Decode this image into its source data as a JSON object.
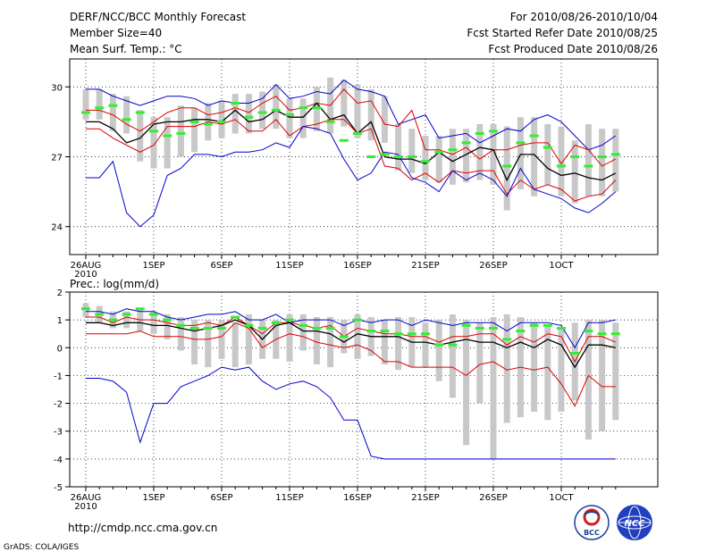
{
  "header": {
    "title": "DERF/NCC/BCC Monthly Forecast",
    "member_size": "Member Size=40",
    "variable": "Mean Surf. Temp.: °C",
    "period": "For 2010/08/26-2010/10/04",
    "fcst_started": "Fcst Started Refer Date 2010/08/25",
    "fcst_produced": "Fcst Produced Date 2010/08/26"
  },
  "precip_label": "Prec.: log(mm/d)",
  "footer": {
    "url": "http://cmdp.ncc.cma.gov.cn",
    "grads": "GrADS: COLA/IGES",
    "logo_bcc": "BCC",
    "logo_ncc": "NCC"
  },
  "colors": {
    "max_min": "#0000cc",
    "std_band": "#dd0000",
    "mean": "#000000",
    "observed": "#33ee33",
    "spread": "#c8c8c8"
  },
  "chart_data": [
    {
      "type": "line",
      "title": "Mean Surf. Temp.: °C",
      "x_tick_labels": [
        "26AUG",
        "1SEP",
        "6SEP",
        "11SEP",
        "16SEP",
        "21SEP",
        "26SEP",
        "1OCT"
      ],
      "x_year_label": "2010",
      "y_ticks": [
        "24",
        "27",
        "30"
      ],
      "ylim": [
        22.8,
        31.2
      ],
      "days": [
        0,
        1,
        2,
        3,
        4,
        5,
        6,
        7,
        8,
        9,
        10,
        11,
        12,
        13,
        14,
        15,
        16,
        17,
        18,
        19,
        20,
        21,
        22,
        23,
        24,
        25,
        26,
        27,
        28,
        29,
        30,
        31,
        32,
        33,
        34,
        35,
        36,
        37,
        38,
        39
      ],
      "series": [
        {
          "name": "max",
          "values": [
            29.9,
            29.9,
            29.6,
            29.4,
            29.2,
            29.4,
            29.6,
            29.6,
            29.5,
            29.2,
            29.4,
            29.3,
            29.3,
            29.5,
            30.1,
            29.5,
            29.6,
            29.8,
            29.7,
            30.3,
            29.9,
            29.8,
            29.6,
            28.4,
            28.6,
            28.8,
            27.8,
            27.9,
            28.0,
            27.6,
            27.9,
            28.2,
            28.1,
            28.6,
            28.8,
            28.5,
            27.9,
            27.3,
            27.5,
            27.9
          ]
        },
        {
          "name": "upper",
          "values": [
            29.0,
            29.0,
            28.8,
            28.4,
            28.1,
            28.5,
            28.9,
            29.1,
            29.1,
            28.8,
            28.9,
            29.1,
            28.9,
            29.3,
            29.6,
            29.0,
            29.1,
            29.3,
            29.2,
            29.9,
            29.3,
            29.4,
            28.4,
            28.3,
            29.0,
            27.3,
            27.3,
            27.1,
            27.4,
            26.9,
            27.3,
            27.3,
            27.5,
            27.6,
            27.6,
            26.7,
            27.5,
            27.3,
            26.6,
            26.9
          ]
        },
        {
          "name": "mean",
          "values": [
            28.5,
            28.5,
            28.2,
            27.6,
            27.8,
            28.4,
            28.5,
            28.5,
            28.6,
            28.6,
            28.5,
            29.0,
            28.5,
            28.6,
            29.0,
            28.7,
            28.7,
            29.3,
            28.6,
            28.8,
            28.0,
            28.5,
            27.0,
            26.9,
            26.9,
            26.7,
            27.2,
            26.8,
            27.1,
            27.4,
            27.3,
            26.0,
            27.1,
            27.1,
            26.5,
            26.2,
            26.3,
            26.1,
            26.0,
            26.3
          ]
        },
        {
          "name": "lower",
          "values": [
            28.2,
            28.2,
            27.8,
            27.5,
            27.2,
            27.5,
            28.3,
            28.3,
            28.3,
            28.5,
            28.4,
            28.6,
            28.1,
            28.1,
            28.6,
            27.9,
            28.3,
            28.4,
            28.6,
            28.6,
            28.0,
            28.2,
            26.6,
            26.5,
            26.0,
            26.3,
            25.9,
            26.4,
            26.3,
            26.4,
            26.4,
            25.4,
            26.0,
            25.6,
            25.8,
            25.6,
            25.1,
            25.3,
            25.4,
            26.0
          ]
        },
        {
          "name": "min",
          "values": [
            26.1,
            26.1,
            26.8,
            24.6,
            24.0,
            24.5,
            26.2,
            26.5,
            27.1,
            27.1,
            27.0,
            27.2,
            27.2,
            27.3,
            27.6,
            27.4,
            28.3,
            28.2,
            28.0,
            26.9,
            26.0,
            26.3,
            27.2,
            27.1,
            26.1,
            25.9,
            25.5,
            26.4,
            26.0,
            26.3,
            26.0,
            25.3,
            26.5,
            25.6,
            25.4,
            25.2,
            24.8,
            24.6,
            25.0,
            25.5
          ]
        },
        {
          "name": "observed",
          "values": [
            28.9,
            29.1,
            29.2,
            28.6,
            28.9,
            28.1,
            27.9,
            28.0,
            28.5,
            28.4,
            28.5,
            29.3,
            28.7,
            28.9,
            29.0,
            28.8,
            29.1,
            29.1,
            28.5,
            27.7,
            28.0,
            27.0,
            27.1,
            27.0,
            27.0,
            26.8,
            27.2,
            27.3,
            27.6,
            28.0,
            28.1,
            26.6,
            27.6,
            27.9,
            27.4,
            26.6,
            27.0,
            26.6,
            27.0,
            27.1
          ]
        }
      ],
      "spread_bars": [
        [
          28.6,
          29.9
        ],
        [
          28.6,
          29.9
        ],
        [
          28.1,
          29.7
        ],
        [
          28.0,
          29.6
        ],
        [
          26.8,
          29.0
        ],
        [
          26.5,
          28.7
        ],
        [
          26.5,
          28.7
        ],
        [
          27.0,
          29.2
        ],
        [
          27.2,
          29.1
        ],
        [
          27.7,
          29.3
        ],
        [
          27.8,
          29.4
        ],
        [
          28.0,
          29.7
        ],
        [
          28.0,
          29.7
        ],
        [
          28.2,
          29.8
        ],
        [
          28.2,
          30.1
        ],
        [
          27.8,
          29.5
        ],
        [
          27.8,
          29.5
        ],
        [
          28.1,
          30.0
        ],
        [
          28.0,
          30.4
        ],
        [
          28.3,
          30.3
        ],
        [
          27.8,
          30.1
        ],
        [
          27.7,
          29.9
        ],
        [
          27.6,
          29.6
        ],
        [
          26.4,
          28.4
        ],
        [
          26.3,
          28.2
        ],
        [
          26.0,
          27.9
        ],
        [
          25.9,
          27.9
        ],
        [
          25.8,
          28.2
        ],
        [
          25.9,
          28.2
        ],
        [
          26.0,
          28.4
        ],
        [
          25.8,
          28.4
        ],
        [
          24.7,
          28.3
        ],
        [
          25.6,
          28.7
        ],
        [
          25.3,
          28.7
        ],
        [
          25.8,
          28.4
        ],
        [
          25.3,
          28.3
        ],
        [
          25.0,
          27.7
        ],
        [
          25.3,
          28.4
        ],
        [
          25.3,
          28.2
        ],
        [
          25.5,
          28.2
        ]
      ]
    },
    {
      "type": "line",
      "title": "Prec.: log(mm/d)",
      "x_tick_labels": [
        "26AUG",
        "1SEP",
        "6SEP",
        "11SEP",
        "16SEP",
        "21SEP",
        "26SEP",
        "1OCT"
      ],
      "x_year_label": "2010",
      "y_ticks": [
        "-5",
        "-4",
        "-3",
        "-2",
        "-1",
        "0",
        "1",
        "2"
      ],
      "ylim": [
        -5,
        2
      ],
      "days": [
        0,
        1,
        2,
        3,
        4,
        5,
        6,
        7,
        8,
        9,
        10,
        11,
        12,
        13,
        14,
        15,
        16,
        17,
        18,
        19,
        20,
        21,
        22,
        23,
        24,
        25,
        26,
        27,
        28,
        29,
        30,
        31,
        32,
        33,
        34,
        35,
        36,
        37,
        38,
        39
      ],
      "series": [
        {
          "name": "max",
          "values": [
            1.3,
            1.3,
            1.2,
            1.4,
            1.3,
            1.3,
            1.1,
            1.0,
            1.1,
            1.2,
            1.2,
            1.3,
            1.0,
            1.0,
            1.2,
            0.9,
            1.0,
            1.0,
            1.0,
            0.8,
            1.0,
            0.9,
            1.0,
            1.0,
            0.8,
            1.0,
            0.9,
            0.8,
            0.9,
            0.9,
            0.9,
            0.6,
            0.9,
            0.9,
            0.9,
            0.8,
            0.0,
            0.9,
            0.9,
            1.0
          ]
        },
        {
          "name": "upper",
          "values": [
            1.1,
            1.1,
            0.9,
            1.1,
            1.0,
            1.0,
            0.9,
            0.8,
            0.8,
            0.9,
            0.8,
            1.1,
            0.8,
            0.5,
            0.9,
            0.9,
            0.8,
            0.7,
            0.8,
            0.4,
            0.7,
            0.6,
            0.5,
            0.5,
            0.4,
            0.4,
            0.2,
            0.4,
            0.4,
            0.5,
            0.5,
            0.1,
            0.4,
            0.2,
            0.5,
            0.4,
            -0.5,
            0.4,
            0.4,
            0.2
          ]
        },
        {
          "name": "mean",
          "values": [
            0.9,
            0.9,
            0.8,
            0.9,
            0.9,
            0.8,
            0.8,
            0.7,
            0.6,
            0.7,
            0.8,
            1.0,
            0.8,
            0.3,
            0.8,
            0.9,
            0.6,
            0.6,
            0.5,
            0.2,
            0.5,
            0.4,
            0.4,
            0.4,
            0.2,
            0.2,
            0.1,
            0.2,
            0.3,
            0.2,
            0.2,
            0.0,
            0.2,
            0.0,
            0.3,
            0.1,
            -0.7,
            0.1,
            0.1,
            0.0
          ]
        },
        {
          "name": "lower",
          "values": [
            0.5,
            0.5,
            0.5,
            0.5,
            0.6,
            0.4,
            0.4,
            0.4,
            0.3,
            0.3,
            0.4,
            0.9,
            0.7,
            0.0,
            0.3,
            0.5,
            0.4,
            0.2,
            0.1,
            0.0,
            0.1,
            -0.1,
            -0.5,
            -0.5,
            -0.7,
            -0.7,
            -0.7,
            -0.7,
            -1.0,
            -0.6,
            -0.5,
            -0.8,
            -0.7,
            -0.8,
            -0.7,
            -1.3,
            -2.1,
            -1.0,
            -1.4,
            -1.4
          ]
        },
        {
          "name": "min",
          "values": [
            -1.1,
            -1.1,
            -1.2,
            -1.6,
            -3.4,
            -2.0,
            -2.0,
            -1.4,
            -1.2,
            -1.0,
            -0.7,
            -0.8,
            -0.7,
            -1.2,
            -1.5,
            -1.3,
            -1.2,
            -1.4,
            -1.8,
            -2.6,
            -2.6,
            -3.9,
            -4.0,
            -4.0,
            -4.0,
            -4.0,
            -4.0,
            -4.0,
            -4.0,
            -4.0,
            -4.0,
            -4.0,
            -4.0,
            -4.0,
            -4.0,
            -4.0,
            -4.0,
            -4.0,
            -4.0,
            -4.0
          ]
        },
        {
          "name": "observed",
          "values": [
            1.4,
            1.2,
            1.0,
            1.2,
            1.4,
            1.2,
            1.0,
            0.8,
            0.7,
            0.7,
            0.7,
            1.1,
            0.8,
            0.7,
            0.9,
            1.0,
            0.8,
            0.7,
            0.7,
            0.4,
            1.0,
            0.6,
            0.6,
            0.5,
            0.5,
            0.5,
            0.1,
            0.1,
            0.8,
            0.7,
            0.7,
            0.3,
            0.6,
            0.8,
            0.8,
            0.7,
            -0.2,
            0.6,
            0.5,
            0.5
          ]
        }
      ],
      "spread_bars": [
        [
          1.1,
          1.6
        ],
        [
          0.9,
          1.5
        ],
        [
          0.7,
          1.3
        ],
        [
          0.7,
          1.3
        ],
        [
          0.6,
          1.4
        ],
        [
          0.5,
          1.3
        ],
        [
          0.3,
          1.2
        ],
        [
          -0.1,
          1.1
        ],
        [
          -0.6,
          1.0
        ],
        [
          -0.7,
          1.0
        ],
        [
          -0.4,
          1.0
        ],
        [
          -0.7,
          0.9
        ],
        [
          -0.6,
          1.2
        ],
        [
          -0.4,
          1.0
        ],
        [
          -0.4,
          1.0
        ],
        [
          -0.5,
          1.2
        ],
        [
          -0.1,
          1.2
        ],
        [
          -0.6,
          1.1
        ],
        [
          -0.7,
          1.1
        ],
        [
          -0.2,
          1.0
        ],
        [
          -0.4,
          1.2
        ],
        [
          -0.3,
          1.1
        ],
        [
          -0.6,
          1.0
        ],
        [
          -0.8,
          1.1
        ],
        [
          -0.7,
          1.1
        ],
        [
          -0.7,
          0.9
        ],
        [
          -1.2,
          1.0
        ],
        [
          -1.8,
          1.2
        ],
        [
          -3.5,
          1.0
        ],
        [
          -2.0,
          0.9
        ],
        [
          -4.0,
          1.1
        ],
        [
          -2.7,
          1.2
        ],
        [
          -2.5,
          1.1
        ],
        [
          -2.3,
          0.9
        ],
        [
          -2.6,
          0.8
        ],
        [
          -2.3,
          0.7
        ],
        [
          -1.9,
          0.9
        ],
        [
          -3.3,
          1.0
        ],
        [
          -3.0,
          1.0
        ],
        [
          -2.6,
          0.9
        ]
      ]
    }
  ]
}
